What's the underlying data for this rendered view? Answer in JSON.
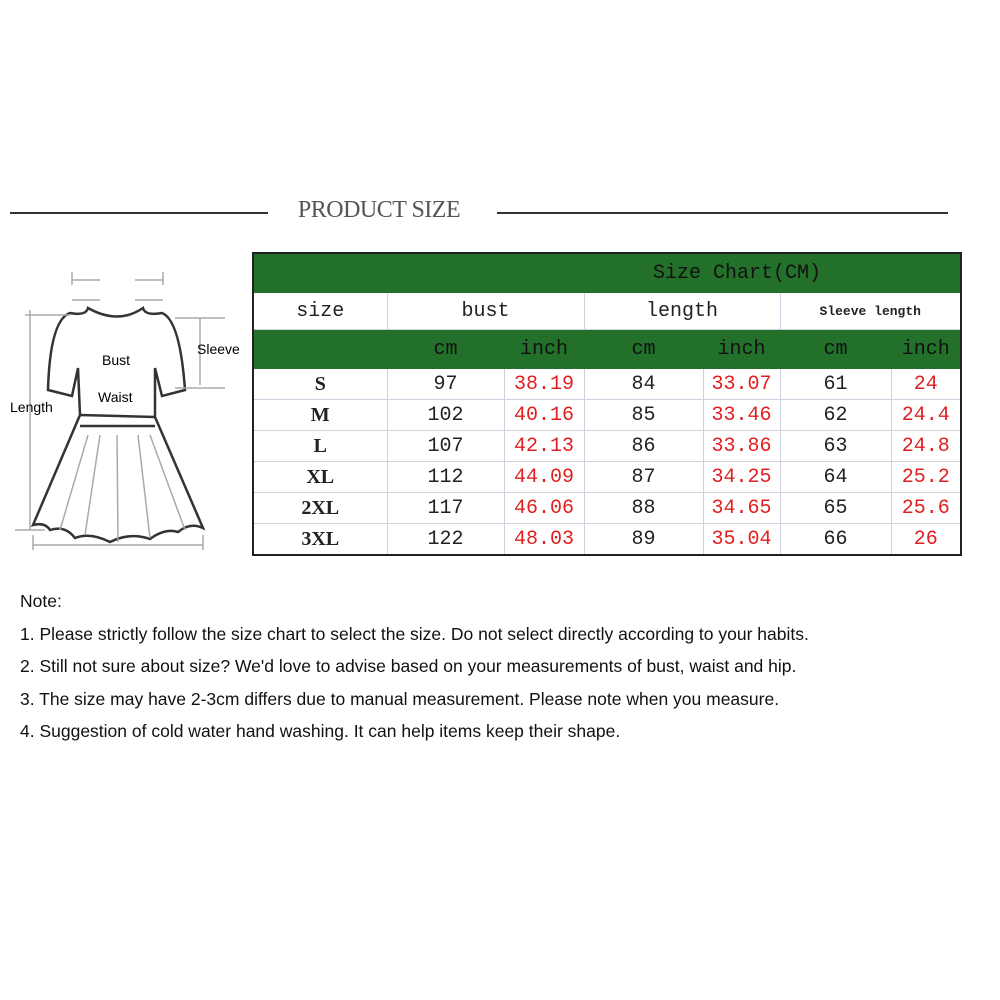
{
  "title": "PRODUCT SIZE",
  "diagram": {
    "labels": {
      "bust": "Bust",
      "waist": "Waist",
      "sleeve": "Sleeve",
      "length": "Length"
    }
  },
  "table": {
    "caption": "Size Chart(CM)",
    "headers": [
      "size",
      "bust",
      "length",
      "Sleeve length"
    ],
    "units": [
      "cm",
      "inch",
      "cm",
      "inch",
      "cm",
      "inch"
    ],
    "rows": [
      [
        "S",
        "97",
        "38.19",
        "84",
        "33.07",
        "61",
        "24"
      ],
      [
        "M",
        "102",
        "40.16",
        "85",
        "33.46",
        "62",
        "24.4"
      ],
      [
        "L",
        "107",
        "42.13",
        "86",
        "33.86",
        "63",
        "24.8"
      ],
      [
        "XL",
        "112",
        "44.09",
        "87",
        "34.25",
        "64",
        "25.2"
      ],
      [
        "2XL",
        "117",
        "46.06",
        "88",
        "34.65",
        "65",
        "25.6"
      ],
      [
        "3XL",
        "122",
        "48.03",
        "89",
        "35.04",
        "66",
        "26"
      ]
    ],
    "colors": {
      "header_green": "#23702a",
      "inch_red": "#e02020"
    }
  },
  "notes": {
    "heading": "Note:",
    "items": [
      "1. Please strictly follow the size chart to select the size. Do not select directly according to your habits.",
      "2. Still not sure about size? We'd love to advise based on your measurements of bust, waist and hip.",
      "3. The size may have 2-3cm differs due to manual measurement. Please note when you measure.",
      "4. Suggestion of cold water hand washing. It can help items keep their shape."
    ]
  }
}
